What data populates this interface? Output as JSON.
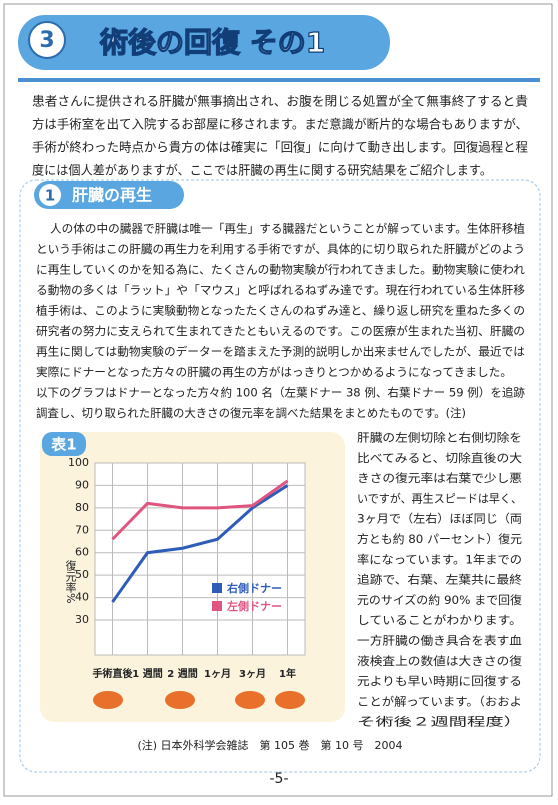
{
  "header": {
    "number": "3",
    "title": "術後の回復 その1"
  },
  "intro": [
    "患者さんに提供される肝臓が無事摘出され、お腹を閉じる処置が全て無事終了すると貴",
    "方は手術室を出て入院するお部屋に移されます。まだ意識が断片的な場合もありますが、",
    "手術が終わった時点から貴方の体は確実に「回復」に向けて動き出します。回復過程と程",
    "度には個人差がありますが、ここでは肝臓の再生に関する研究結果をご紹介します。"
  ],
  "section": {
    "number": "1",
    "title": "肝臓の再生",
    "paragraph": [
      "人の体の中の臓器で肝臓は唯一「再生」する臓器だということが解っています。生体肝移植",
      "という手術はこの肝臓の再生力を利用する手術ですが、具体的に切り取られた肝臓がどのよう",
      "に再生していくのかを知る為に、たくさんの動物実験が行われてきました。動物実験に使われ",
      "る動物の多くは「ラット」や「マウス」と呼ばれるねずみ達です。現在行われている生体肝移",
      "植手術は、このように実験動物となったたくさんのねずみ達と、繰り返し研究を重ねた多くの",
      "研究者の努力に支えられて生まれてきたともいえるのです。この医療が生まれた当初、肝臓の",
      "再生に関しては動物実験のデーターを踏まえた予測的説明しか出来ませんでしたが、最近では",
      "実際にドナーとなった方々の肝臓の再生の方がはっきりとつかめるようになってきました。",
      "以下のグラフはドナーとなった方々約 100 名（左葉ドナー 38 例、右葉ドナー 59 例）を追跡",
      "調査し、切り取られた肝臓の大きさの復元率を調べた結果をまとめたものです。(注)"
    ],
    "side_text": [
      "肝臓の左側切除と右側切除を",
      "比べてみると、切除直後の大",
      "きさの復元率は右葉で少し悪",
      "いですが、再生スピードは早く、",
      "3ヶ月で（左右）ほぼ同じ（両",
      "方とも約 80 パーセント）復元",
      "率になっています。1年までの",
      "追跡で、右葉、左葉共に最終",
      "元のサイズの約 90% まで回復",
      "していることがわかります。",
      "一方肝臓の働き具合を表す血",
      "液検査上の数値は大きさの復",
      "元よりも早い時期に回復する",
      "ことが解っています。（おおよ",
      "そ術後２週間程度）"
    ],
    "note": "(注) 日本外科学会雑誌　第 105 巻　第 10 号　2004"
  },
  "chart_data": {
    "type": "line",
    "label": "表1",
    "y_label": "復元率%",
    "categories": [
      "手術直後",
      "1 週間",
      "2 週間",
      "1ヶ月",
      "3ヶ月",
      "1年"
    ],
    "series": [
      {
        "name": "右側ドナー",
        "color": "#2f5cb8",
        "values": [
          38,
          60,
          62,
          66,
          80,
          90
        ]
      },
      {
        "name": "左側ドナー",
        "color": "#e05580",
        "values": [
          66,
          82,
          80,
          80,
          81,
          92
        ]
      }
    ],
    "ylim": [
      30,
      100
    ],
    "yticks": [
      30,
      40,
      50,
      60,
      70,
      80,
      90,
      100
    ],
    "grid": true
  },
  "page_number": "-5-"
}
